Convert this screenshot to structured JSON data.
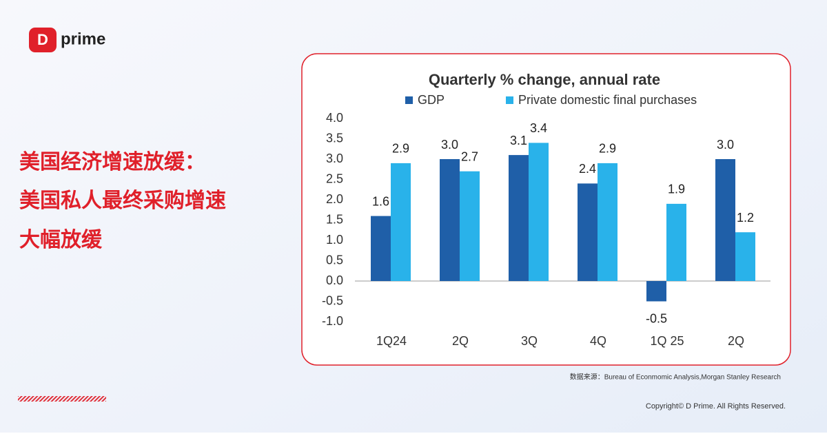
{
  "logo": "prime",
  "headline": [
    "美国经济增速放缓：",
    "美国私人最终采购增速",
    "大幅放缓"
  ],
  "source": "数据来源：Bureau of Econmomic Analysis,Morgan Stanley Research",
  "copyright": "Copyright© D Prime. All Rights Reserved.",
  "chart_data": {
    "type": "bar",
    "title": "Quarterly % change, annual rate",
    "categories": [
      "1Q24",
      "2Q",
      "3Q",
      "4Q",
      "1Q 25",
      "2Q"
    ],
    "series": [
      {
        "name": "GDP",
        "color": "#1f5fa8",
        "values": [
          1.6,
          3,
          3.1,
          2.4,
          -0.5,
          3
        ],
        "value_labels": [
          "1.6",
          "3.0",
          "3.1",
          "2.4",
          "-0.5",
          "3.0"
        ]
      },
      {
        "name": "Private domestic final purchases",
        "color": "#29b2ea",
        "values": [
          2.9,
          2.7,
          3.4,
          2.9,
          1.9,
          1.2
        ],
        "value_labels": [
          "2.9",
          "2.7",
          "3.4",
          "2.9",
          "1.9",
          "1.2"
        ]
      }
    ],
    "ylim": [
      -1,
      4
    ],
    "yticks": [
      {
        "value": -1,
        "label": "-1.0"
      },
      -0.5,
      {
        "value": 0,
        "label": "0.0"
      },
      0.5,
      {
        "value": 1,
        "label": "1.0"
      },
      1.5,
      {
        "value": 2,
        "label": "2.0"
      },
      2.5,
      {
        "value": 3,
        "label": "3.0"
      },
      3.5,
      {
        "value": 4,
        "label": "4.0"
      }
    ],
    "grid": false
  }
}
